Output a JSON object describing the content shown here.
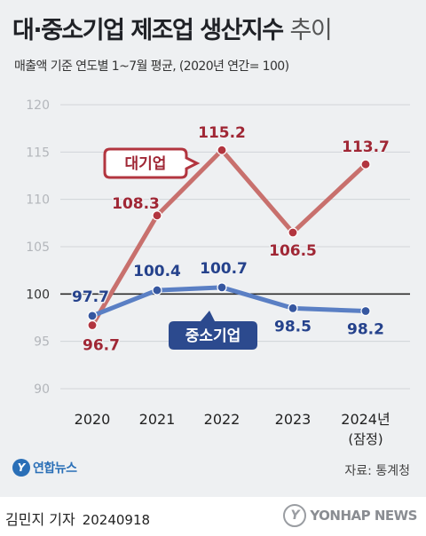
{
  "title": {
    "main": "대·중소기업 제조업 생산지수",
    "light": "추이"
  },
  "subtitle": "매출액 기준 연도별 1~7월 평균, (2020년 연간= 100)",
  "source": "자료: 통계청",
  "logo": {
    "text": "연합뉴스"
  },
  "footer": {
    "reporter": "김민지 기자",
    "date": "20240918",
    "mark": "YONHAP NEWS"
  },
  "colors": {
    "large": "#c8706d",
    "large_point": "#b2353f",
    "large_text": "#a02735",
    "small": "#5a7fc4",
    "small_point": "#3657a0",
    "small_text": "#25428c",
    "grid": "#d1d4d8",
    "baseline": "#2b2b2b"
  },
  "chart_data": {
    "type": "line",
    "categories": [
      "2020",
      "2021",
      "2022",
      "2023",
      "2024년"
    ],
    "category_sublabels": [
      "",
      "",
      "",
      "",
      "(잠정)"
    ],
    "ylim": [
      90,
      120
    ],
    "yticks": [
      90,
      95,
      100,
      105,
      110,
      115,
      120
    ],
    "baseline": 100,
    "series": [
      {
        "name": "대기업",
        "values": [
          96.7,
          108.3,
          115.2,
          106.5,
          113.7
        ],
        "labels": [
          "96.7",
          "108.3",
          "115.2",
          "106.5",
          "113.7"
        ]
      },
      {
        "name": "중소기업",
        "values": [
          97.7,
          100.4,
          100.7,
          98.5,
          98.2
        ],
        "labels": [
          "97.7",
          "100.4",
          "100.7",
          "98.5",
          "98.2"
        ]
      }
    ]
  }
}
